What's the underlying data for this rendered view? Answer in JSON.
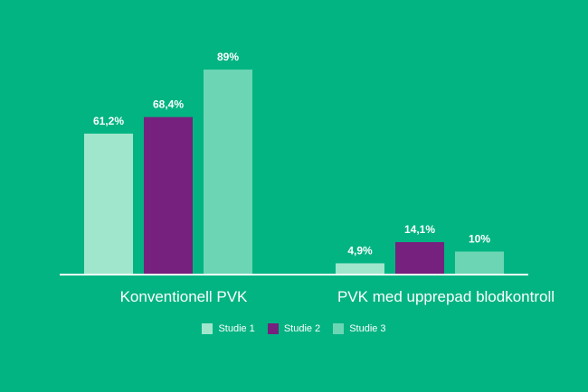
{
  "chart_data": {
    "type": "bar",
    "categories": [
      "Konventionell PVK",
      "PVK med upprepad blodkontroll"
    ],
    "series": [
      {
        "name": "Studie 1",
        "values": [
          61.2,
          4.9
        ],
        "labels": [
          "61,2%",
          "4,9%"
        ],
        "color": "#a0e6cc"
      },
      {
        "name": "Studie 2",
        "values": [
          68.4,
          14.1
        ],
        "labels": [
          "68,4%",
          "14,1%"
        ],
        "color": "#76217e"
      },
      {
        "name": "Studie 3",
        "values": [
          89,
          10
        ],
        "labels": [
          "89%",
          "10%"
        ],
        "color": "#6cd6b4"
      }
    ],
    "ylim": [
      0,
      100
    ],
    "grid": false,
    "legend_position": "bottom",
    "baseline_color": "#ffffff",
    "background": "#02b482"
  }
}
